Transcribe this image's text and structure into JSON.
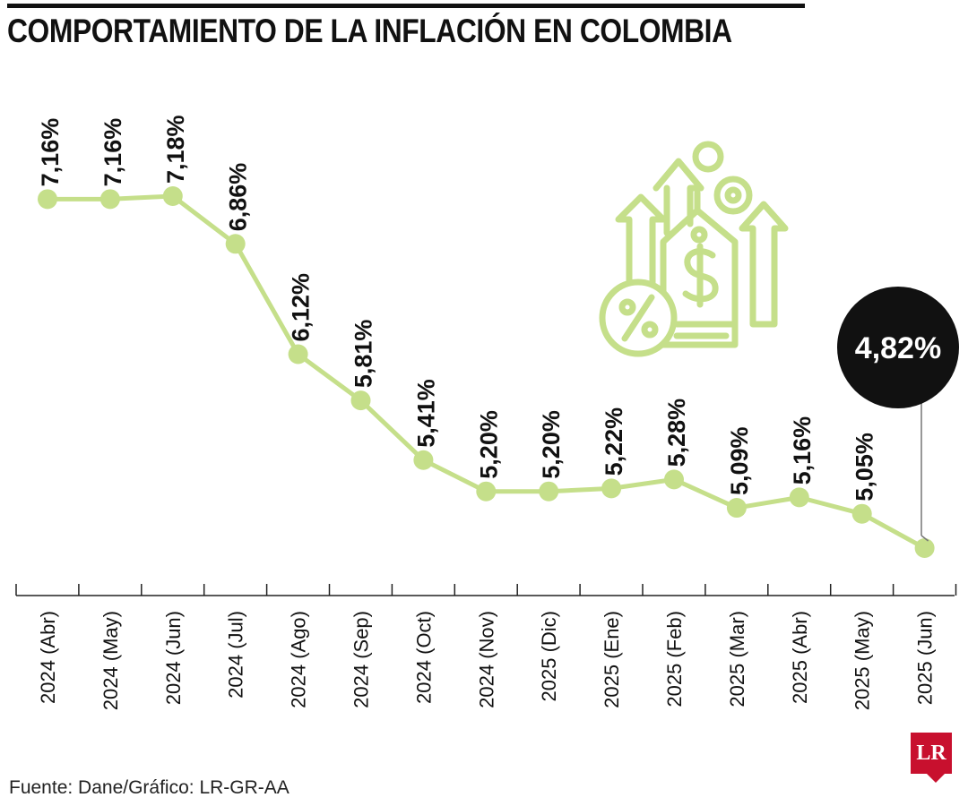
{
  "title": "COMPORTAMIENTO DE LA INFLACIÓN EN COLOMBIA",
  "source": "Fuente: Dane/Gráfico: LR-GR-AA",
  "logo_text": "LR",
  "colors": {
    "line": "#c5df8a",
    "point": "#c5df8a",
    "text": "#111111",
    "callout": "#111111",
    "logo": "#c8102e"
  },
  "icon": "inflation-arrows-price-tag-percent-icon",
  "chart_data": {
    "type": "line",
    "categories": [
      "2024 (Abr)",
      "2024 (May)",
      "2024 (Jun)",
      "2024 (Jul)",
      "2024 (Ago)",
      "2024 (Sep)",
      "2024 (Oct)",
      "2024 (Nov)",
      "2025 (Dic)",
      "2025 (Ene)",
      "2025 (Feb)",
      "2025 (Mar)",
      "2025 (Abr)",
      "2025 (May)",
      "2025 (Jun)"
    ],
    "values": [
      7.16,
      7.16,
      7.18,
      6.86,
      6.12,
      5.81,
      5.41,
      5.2,
      5.2,
      5.22,
      5.28,
      5.09,
      5.16,
      5.05,
      4.82
    ],
    "labels": [
      "7,16%",
      "7,16%",
      "7,18%",
      "6,86%",
      "6,12%",
      "5,81%",
      "5,41%",
      "5,20%",
      "5,20%",
      "5,22%",
      "5,28%",
      "5,09%",
      "5,16%",
      "5,05%",
      "4,82%"
    ],
    "highlight_index": 14,
    "ylim": [
      4.82,
      7.18
    ],
    "grid": false,
    "legend": "none"
  }
}
